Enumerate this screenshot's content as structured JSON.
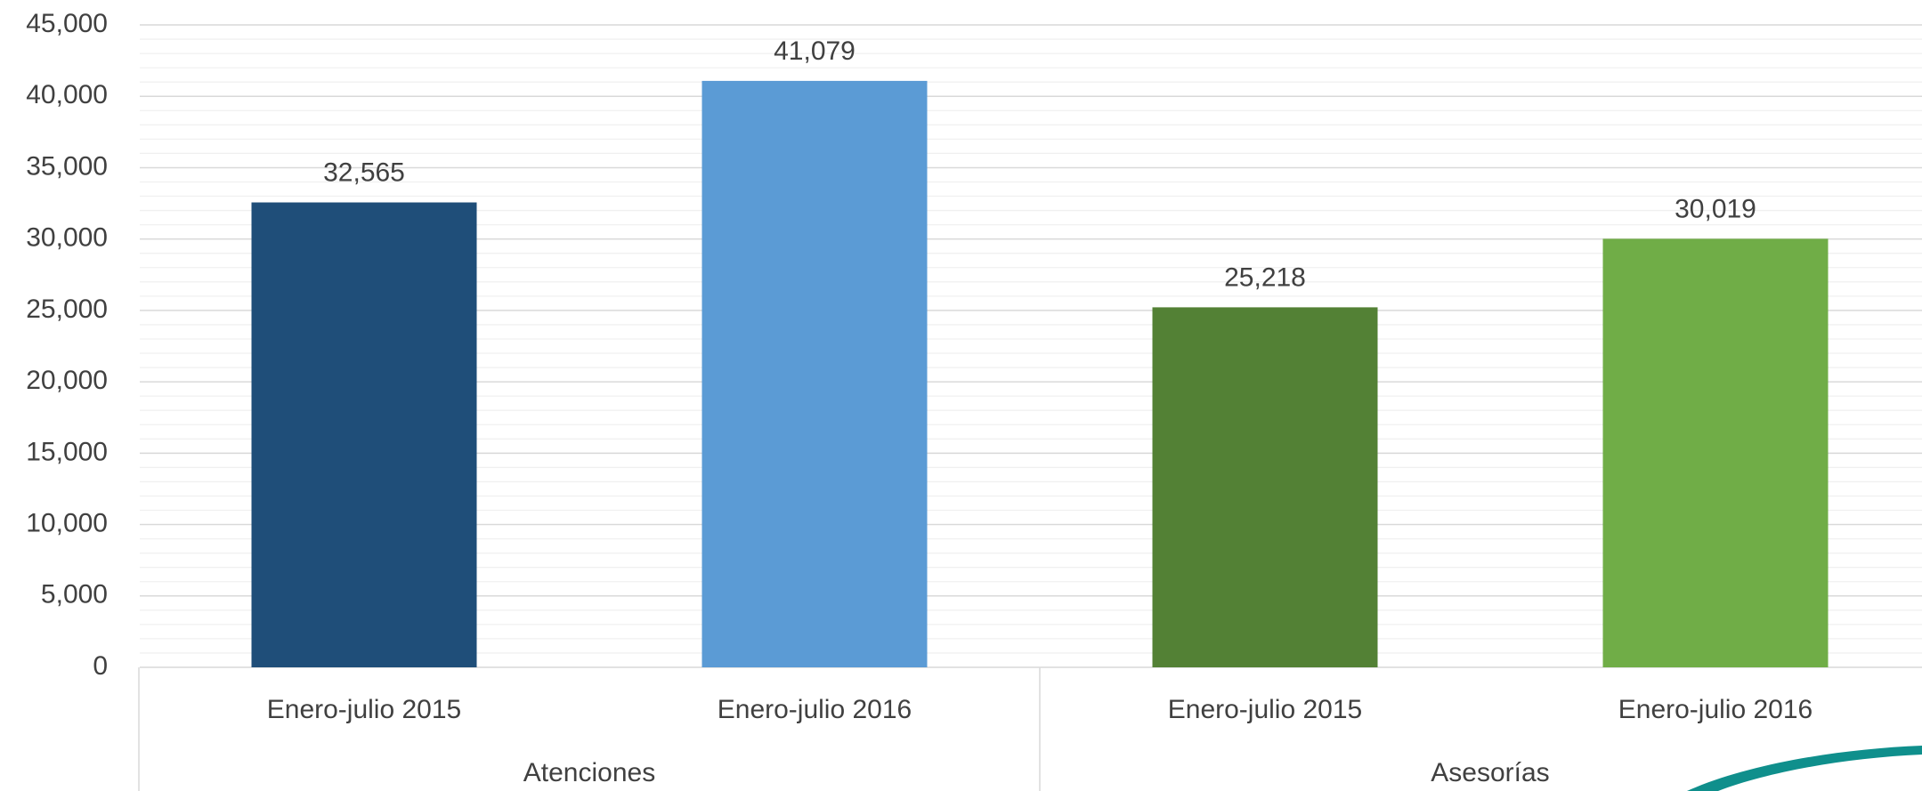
{
  "chart_data": {
    "type": "bar",
    "groups": [
      {
        "name": "Atenciones",
        "categories": [
          "Enero-julio 2015",
          "Enero-julio 2016"
        ],
        "values": [
          32565,
          41079
        ],
        "value_labels": [
          "32,565",
          "41,079"
        ],
        "colors": [
          "#1f4e79",
          "#5b9bd5"
        ]
      },
      {
        "name": "Asesorías",
        "categories": [
          "Enero-julio 2015",
          "Enero-julio 2016"
        ],
        "values": [
          25218,
          30019
        ],
        "value_labels": [
          "25,218",
          "30,019"
        ],
        "colors": [
          "#538135",
          "#70ad47"
        ]
      }
    ],
    "ylim": [
      0,
      45000
    ],
    "yticks": [
      0,
      {
        "value": 5000,
        "label": "5,000"
      },
      {
        "value": 10000,
        "label": "10,000"
      },
      {
        "value": 15000,
        "label": "15,000"
      },
      {
        "value": 20000,
        "label": "20,000"
      },
      {
        "value": 25000,
        "label": "25,000"
      },
      {
        "value": 30000,
        "label": "30,000"
      },
      {
        "value": 35000,
        "label": "35,000"
      },
      {
        "value": 40000,
        "label": "40,000"
      },
      {
        "value": 45000,
        "label": "45,000"
      }
    ],
    "grid": true,
    "minor_grid": true
  }
}
